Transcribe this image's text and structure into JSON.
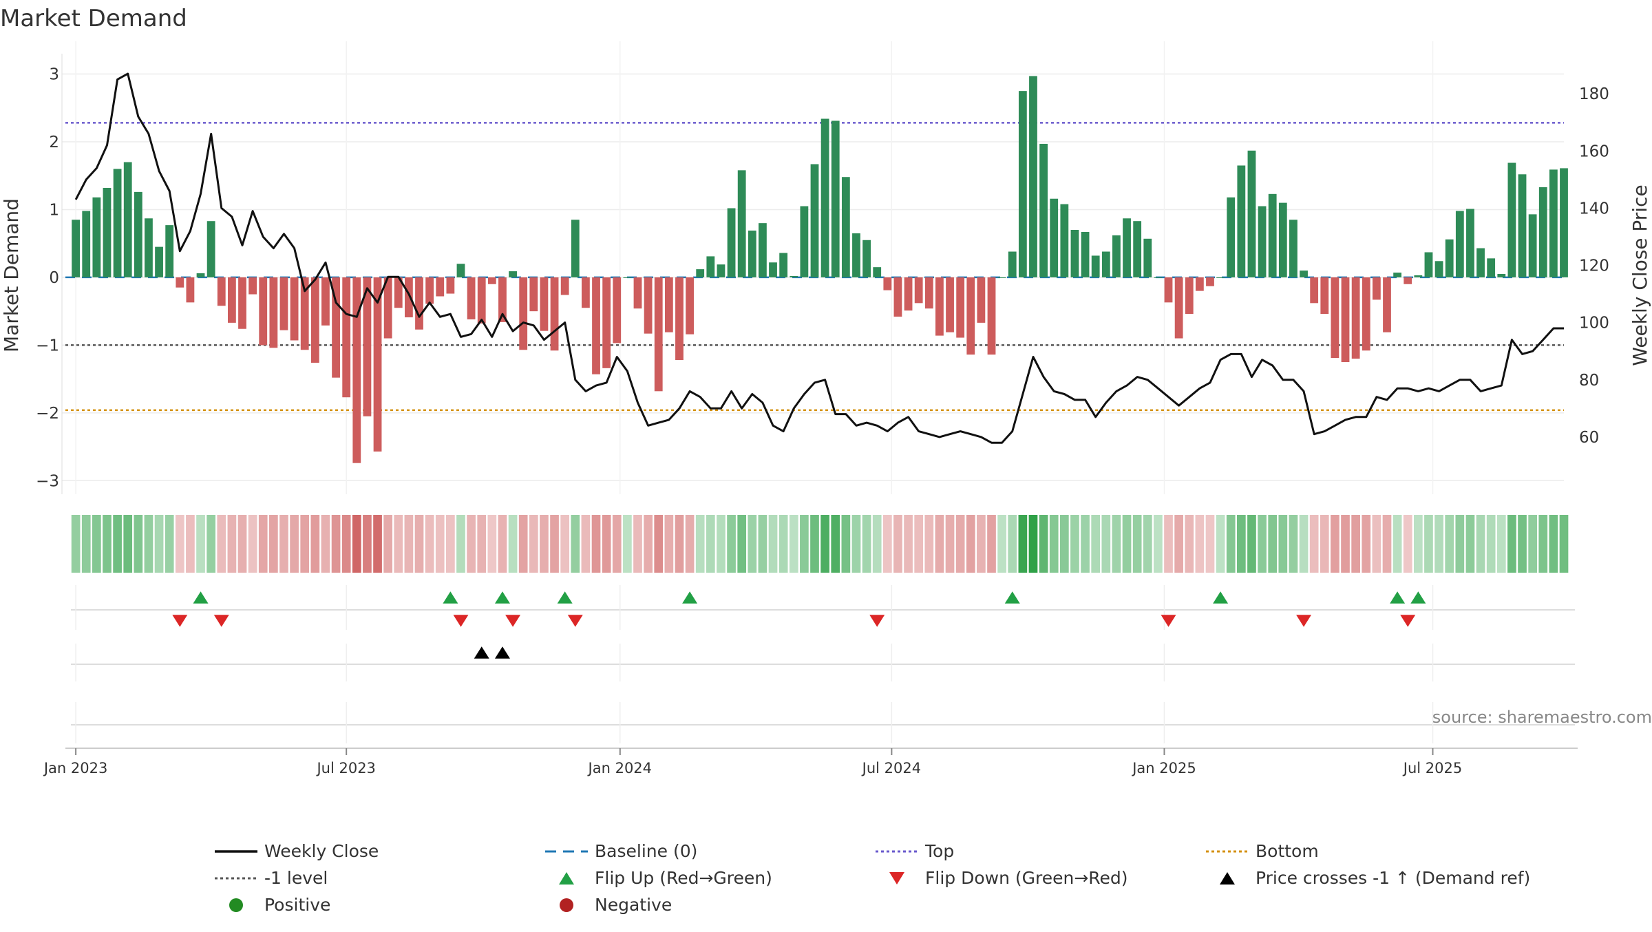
{
  "chart_data": {
    "type": "bar",
    "title": "Market Demand",
    "ylabel_left": "Market Demand",
    "ylabel_right": "Weekly Close Price",
    "ylim_left": [
      -3.2,
      3.3
    ],
    "ylim_right": [
      40,
      194
    ],
    "yticks_left": [
      3,
      2,
      1,
      0,
      -1,
      -2,
      -3
    ],
    "yticks_left_labels": [
      "3",
      "2",
      "1",
      "0",
      "−1",
      "−2",
      "−3"
    ],
    "yticks_right": [
      180,
      160,
      140,
      120,
      100,
      80,
      60
    ],
    "yticks_right_labels": [
      "180",
      "160",
      "140",
      "120",
      "100",
      "80",
      "60"
    ],
    "x_week_range": [
      -1,
      143
    ],
    "x_ticks": [
      {
        "week": 0,
        "label": "Jan 2023"
      },
      {
        "week": 26,
        "label": "Jul 2023"
      },
      {
        "week": 52.3,
        "label": "Jan 2024"
      },
      {
        "week": 78.4,
        "label": "Jul 2024"
      },
      {
        "week": 104.6,
        "label": "Jan 2025"
      },
      {
        "week": 130.4,
        "label": "Jul 2025"
      }
    ],
    "reference_lines": {
      "baseline": 0,
      "top": 2.28,
      "bottom": -1.96,
      "minus_one": -1
    },
    "demand": [
      0.85,
      0.98,
      1.18,
      1.32,
      1.6,
      1.7,
      1.26,
      0.87,
      0.45,
      0.77,
      -0.15,
      -0.37,
      0.06,
      0.83,
      -0.42,
      -0.67,
      -0.76,
      -0.25,
      -1.0,
      -1.04,
      -0.78,
      -0.93,
      -1.07,
      -1.26,
      -0.71,
      -1.48,
      -1.77,
      -2.74,
      -2.05,
      -2.57,
      -0.9,
      -0.45,
      -0.59,
      -0.77,
      -0.39,
      -0.28,
      -0.24,
      0.2,
      -0.62,
      -0.68,
      -0.1,
      -0.66,
      0.09,
      -1.07,
      -0.5,
      -0.79,
      -1.08,
      -0.26,
      0.85,
      -0.45,
      -1.43,
      -1.34,
      -0.97,
      0.0,
      -0.46,
      -0.83,
      -1.68,
      -0.81,
      -1.22,
      -0.84,
      0.12,
      0.31,
      0.19,
      1.02,
      1.58,
      0.69,
      0.8,
      0.22,
      0.36,
      0.02,
      1.05,
      1.67,
      2.34,
      2.31,
      1.48,
      0.65,
      0.55,
      0.15,
      -0.19,
      -0.58,
      -0.49,
      -0.38,
      -0.46,
      -0.86,
      -0.81,
      -0.89,
      -1.14,
      -0.67,
      -1.14,
      0.0,
      0.38,
      2.75,
      2.97,
      1.97,
      1.16,
      1.08,
      0.7,
      0.67,
      0.32,
      0.38,
      0.62,
      0.87,
      0.83,
      0.57,
      0.0,
      -0.37,
      -0.9,
      -0.54,
      -0.2,
      -0.13,
      0.0,
      1.18,
      1.65,
      1.87,
      1.05,
      1.23,
      1.1,
      0.85,
      0.1,
      -0.38,
      -0.54,
      -1.19,
      -1.25,
      -1.2,
      -1.08,
      -0.33,
      -0.81,
      0.07,
      -0.1,
      0.03,
      0.37,
      0.24,
      0.56,
      0.98,
      1.01,
      0.43,
      0.28,
      0.05,
      1.69,
      1.52,
      0.93,
      1.33,
      1.59,
      1.61
    ],
    "price": [
      143,
      150,
      154,
      162,
      185,
      187,
      172,
      166,
      153,
      146,
      125,
      132,
      145,
      166,
      140,
      137,
      127,
      139,
      130,
      126,
      131,
      126,
      111,
      115,
      121,
      107,
      103,
      102,
      112,
      107,
      116,
      116,
      110,
      102,
      107,
      102,
      103,
      95,
      96,
      101,
      95,
      103,
      97,
      100,
      99,
      94,
      97,
      100,
      80,
      76,
      78,
      79,
      88,
      83,
      72,
      64,
      65,
      66,
      70,
      76,
      74,
      70,
      70,
      76,
      70,
      75,
      72,
      64,
      62,
      70,
      75,
      79,
      80,
      68,
      68,
      64,
      65,
      64,
      62,
      65,
      67,
      62,
      61,
      60,
      61,
      62,
      61,
      60,
      58,
      58,
      62,
      75,
      88,
      81,
      76,
      75,
      73,
      73,
      67,
      72,
      76,
      78,
      81,
      80,
      77,
      74,
      71,
      74,
      77,
      79,
      87,
      89,
      89,
      81,
      87,
      85,
      80,
      80,
      76,
      61,
      62,
      64,
      66,
      67,
      67,
      74,
      73,
      77,
      77,
      76,
      77,
      76,
      78,
      80,
      80,
      76,
      77,
      78,
      94,
      89,
      90,
      94,
      98,
      98
    ],
    "flip_up_weeks": [
      12,
      36,
      41,
      47,
      59,
      90,
      110,
      127,
      129
    ],
    "flip_down_weeks": [
      10,
      14,
      37,
      42,
      48,
      77,
      105,
      118,
      128
    ],
    "price_cross_weeks": [
      39,
      41
    ],
    "colors": {
      "positive_bar": "#2e8b57",
      "negative_bar": "#cd5c5c",
      "price_line": "#111111",
      "baseline": "#1f77b4",
      "top": "#6a5acd",
      "bottom": "#d4900c",
      "minus_one": "#555555",
      "flip_up": "#22a045",
      "flip_down": "#dc2626",
      "price_cross": "#000000",
      "positive_dot": "#228b22",
      "negative_dot": "#b22222"
    },
    "legend": [
      {
        "label": "Weekly Close",
        "kind": "line"
      },
      {
        "label": "Baseline (0)",
        "kind": "dash-blue"
      },
      {
        "label": "Top",
        "kind": "dot-purple"
      },
      {
        "label": "Bottom",
        "kind": "dot-orange"
      },
      {
        "label": "-1 level",
        "kind": "dot-gray"
      },
      {
        "label": "Flip Up (Red→Green)",
        "kind": "tri-up-green"
      },
      {
        "label": "Flip Down (Green→Red)",
        "kind": "tri-down-red"
      },
      {
        "label": "Price crosses -1 ↑ (Demand ref)",
        "kind": "tri-up-black"
      },
      {
        "label": "Positive",
        "kind": "dot-green"
      },
      {
        "label": "Negative",
        "kind": "dot-red"
      }
    ],
    "legend_position": "bottom",
    "source": "source: sharemaestro.com"
  }
}
